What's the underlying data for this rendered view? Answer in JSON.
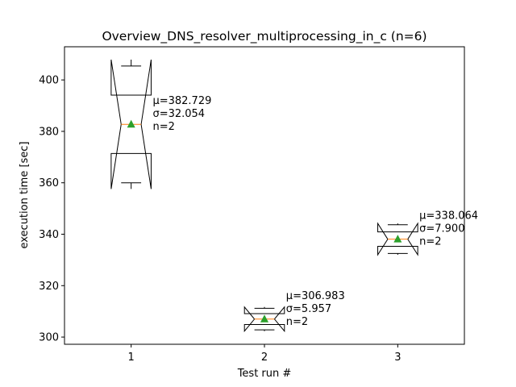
{
  "chart_data": {
    "type": "boxplot",
    "title": "Overview_DNS_resolver_multiprocessing_in_c (n=6)",
    "xlabel": "Test run #",
    "ylabel": "execution time [sec]",
    "x_ticks": [
      "1",
      "2",
      "3"
    ],
    "y_ticks": [
      300,
      320,
      340,
      360,
      380,
      400
    ],
    "ylim": [
      297.2,
      412.9
    ],
    "grid": false,
    "legend": "none",
    "boxes": [
      {
        "position": 1,
        "median": 382.729,
        "mean": 382.729,
        "q1": 371.4,
        "q3": 394.1,
        "whisker_low": 360.0,
        "whisker_high": 405.4,
        "notch_low": 357.6,
        "notch_high": 407.9,
        "stats": [
          "μ=382.729",
          "σ=32.054",
          "n=2"
        ]
      },
      {
        "position": 2,
        "median": 306.983,
        "mean": 306.983,
        "q1": 304.9,
        "q3": 309.1,
        "whisker_low": 302.8,
        "whisker_high": 311.2,
        "notch_low": 302.3,
        "notch_high": 311.7,
        "stats": [
          "μ=306.983",
          "σ=5.957",
          "n=2"
        ]
      },
      {
        "position": 3,
        "median": 338.064,
        "mean": 338.064,
        "q1": 335.3,
        "q3": 340.9,
        "whisker_low": 332.5,
        "whisker_high": 343.7,
        "notch_low": 332.0,
        "notch_high": 344.2,
        "stats": [
          "μ=338.064",
          "σ=7.900",
          "n=2"
        ]
      }
    ],
    "colors": {
      "box": "#000000",
      "median": "#ff7f0e",
      "mean_marker": "#2ca02c"
    }
  }
}
